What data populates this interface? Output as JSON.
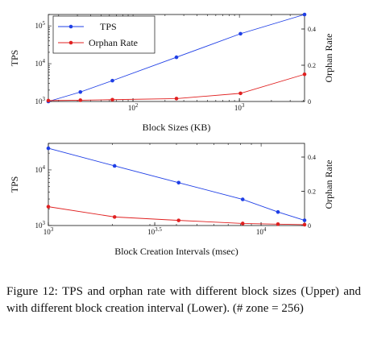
{
  "caption": "Figure 12:  TPS and orphan rate with different block sizes (Upper) and with different block creation interval (Lower). (# zone = 256)",
  "colors": {
    "tps": "#1f3fe6",
    "orphan": "#e02020",
    "axis": "#111111"
  },
  "chart_data": [
    {
      "type": "line",
      "title": "",
      "xlabel": "Block Sizes (KB)",
      "ylabel": "TPS",
      "y2label": "Orphan Rate",
      "xscale": "log",
      "yscale": "log",
      "xlim": [
        16,
        4096
      ],
      "ylim": [
        1000,
        200000
      ],
      "y2lim": [
        0,
        0.48
      ],
      "x_ticks": [
        {
          "v": 100,
          "label": "10",
          "sup": "2"
        },
        {
          "v": 1000,
          "label": "10",
          "sup": "3"
        }
      ],
      "y_ticks": [
        {
          "v": 1000,
          "label": "10",
          "sup": "3"
        },
        {
          "v": 10000,
          "label": "10",
          "sup": "4"
        },
        {
          "v": 100000,
          "label": "10",
          "sup": "5"
        }
      ],
      "y2_ticks": [
        {
          "v": 0,
          "label": "0"
        },
        {
          "v": 0.2,
          "label": "0.2"
        },
        {
          "v": 0.4,
          "label": "0.4"
        }
      ],
      "legend": {
        "placement": "top-left",
        "entries": [
          "TPS",
          "Orphan Rate"
        ]
      },
      "grid": false,
      "series": [
        {
          "name": "TPS",
          "axis": "left",
          "x": [
            16,
            32,
            64,
            256,
            1024,
            4096
          ],
          "values": [
            920,
            1780,
            3560,
            14800,
            62000,
            250000
          ]
        },
        {
          "name": "Orphan Rate",
          "axis": "right",
          "x": [
            16,
            32,
            64,
            256,
            1024,
            4096
          ],
          "values": [
            0.005,
            0.007,
            0.01,
            0.016,
            0.045,
            0.15
          ]
        }
      ]
    },
    {
      "type": "line",
      "title": "",
      "xlabel": "Block Creation Intervals (msec)",
      "ylabel": "TPS",
      "y2label": "Orphan Rate",
      "xscale": "log",
      "yscale": "log",
      "xlim": [
        1000,
        16000
      ],
      "ylim": [
        1000,
        30000
      ],
      "y2lim": [
        0,
        0.48
      ],
      "x_ticks": [
        {
          "v": 1000,
          "label": "10",
          "sup": "3"
        },
        {
          "v": 3162.28,
          "label": "10",
          "sup": "3.5"
        },
        {
          "v": 10000,
          "label": "10",
          "sup": "4"
        }
      ],
      "y_ticks": [
        {
          "v": 1000,
          "label": "10",
          "sup": "3"
        },
        {
          "v": 10000,
          "label": "10",
          "sup": "4"
        }
      ],
      "y2_ticks": [
        {
          "v": 0,
          "label": "0"
        },
        {
          "v": 0.2,
          "label": "0.2"
        },
        {
          "v": 0.4,
          "label": "0.4"
        }
      ],
      "legend": null,
      "grid": false,
      "series": [
        {
          "name": "TPS",
          "axis": "left",
          "x": [
            1000,
            2048,
            4096,
            8192,
            12000,
            16000
          ],
          "values": [
            24500,
            11800,
            5900,
            2950,
            1750,
            1240
          ]
        },
        {
          "name": "Orphan Rate",
          "axis": "right",
          "x": [
            1000,
            2048,
            4096,
            8192,
            12000,
            16000
          ],
          "values": [
            0.11,
            0.05,
            0.03,
            0.012,
            0.008,
            0.005
          ]
        }
      ]
    }
  ]
}
